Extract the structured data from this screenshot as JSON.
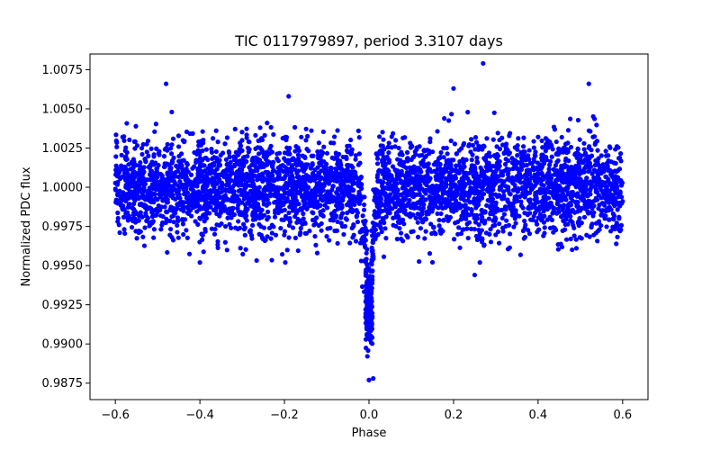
{
  "chart_data": {
    "type": "scatter",
    "title": "TIC 0117979897, period 3.3107 days",
    "xlabel": "Phase",
    "ylabel": "Normalized PDC flux",
    "xlim": [
      -0.66,
      0.66
    ],
    "ylim": [
      0.98645,
      1.0085
    ],
    "x_ticks": [
      -0.6,
      -0.4,
      -0.2,
      0.0,
      0.2,
      0.4,
      0.6
    ],
    "x_tick_labels": [
      "−0.6",
      "−0.4",
      "−0.2",
      "0.0",
      "0.2",
      "0.4",
      "0.6"
    ],
    "y_ticks": [
      0.9875,
      0.99,
      0.9925,
      0.995,
      0.9975,
      1.0,
      1.0025,
      1.005,
      1.0075
    ],
    "y_tick_labels": [
      "0.9875",
      "0.9900",
      "0.9925",
      "0.9950",
      "0.9975",
      "1.0000",
      "1.0025",
      "1.0050",
      "1.0075"
    ],
    "grid": false,
    "series": [
      {
        "name": "PDC flux",
        "color": "#0000ff",
        "phase_range": [
          -0.6,
          0.6
        ],
        "baseline_flux": 1.0,
        "baseline_scatter": 0.0015,
        "transit_center": 0.0,
        "transit_half_width": 0.025,
        "transit_depth": 0.0085,
        "notable_points": [
          {
            "x": 0.27,
            "y": 1.0079
          },
          {
            "x": -0.48,
            "y": 1.0066
          },
          {
            "x": 0.52,
            "y": 1.0066
          },
          {
            "x": 0.2,
            "y": 1.0063
          },
          {
            "x": -0.19,
            "y": 1.0058
          },
          {
            "x": -0.4,
            "y": 0.9952
          },
          {
            "x": 0.25,
            "y": 0.9944
          },
          {
            "x": 0.0,
            "y": 0.9877
          },
          {
            "x": 0.01,
            "y": 0.9878
          }
        ]
      }
    ]
  }
}
